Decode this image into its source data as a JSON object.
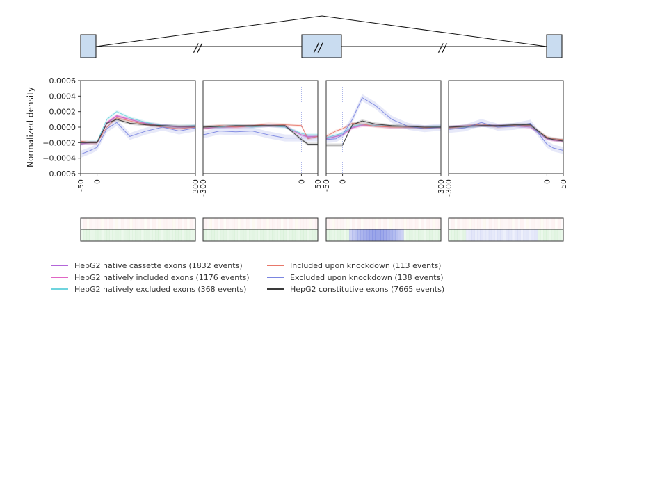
{
  "chart_data": [
    {
      "type": "line",
      "panel": "upstream-exon-end",
      "ylabel": "Normalized density",
      "ylim": [
        -0.0006,
        0.0006
      ],
      "yticks": [
        "0.0006",
        "0.0004",
        "0.0002",
        "0.0000",
        "−0.0002",
        "−0.0004",
        "−0.0006"
      ],
      "xlim": [
        -50,
        300
      ],
      "xticks": [
        "-50",
        "0",
        "300"
      ],
      "vline": 0,
      "series": [
        {
          "name": "HepG2 native cassette exons (1832 events)",
          "x": [
            -50,
            -20,
            0,
            30,
            60,
            100,
            150,
            200,
            250,
            300
          ],
          "y": [
            -0.00022,
            -0.0002,
            -0.0002,
            5e-05,
            0.00014,
            0.0001,
            5e-05,
            2e-05,
            0.0,
            0.0
          ]
        },
        {
          "name": "HepG2 natively included exons (1176 events)",
          "x": [
            -50,
            -20,
            0,
            30,
            60,
            100,
            150,
            200,
            250,
            300
          ],
          "y": [
            -0.00021,
            -0.0002,
            -0.0002,
            6e-05,
            0.00015,
            0.0001,
            4e-05,
            2e-05,
            0.0,
            1e-05
          ]
        },
        {
          "name": "HepG2 natively excluded exons (368 events)",
          "x": [
            -50,
            -20,
            0,
            30,
            60,
            100,
            150,
            200,
            250,
            300
          ],
          "y": [
            -0.0002,
            -0.00019,
            -0.00019,
            0.0001,
            0.0002,
            0.00012,
            6e-05,
            2e-05,
            1e-05,
            2e-05
          ]
        },
        {
          "name": "Included upon knockdown (113 events)",
          "x": [
            -50,
            -20,
            0,
            30,
            60,
            100,
            150,
            200,
            250,
            300
          ],
          "y": [
            -0.00018,
            -0.0002,
            -0.0002,
            0.0,
            0.00012,
            8e-05,
            3e-05,
            0.0,
            -2e-05,
            0.0
          ]
        },
        {
          "name": "Excluded upon knockdown (138 events)",
          "x": [
            -50,
            -20,
            0,
            30,
            60,
            100,
            150,
            200,
            250,
            300
          ],
          "y": [
            -0.00035,
            -0.0003,
            -0.00026,
            -2e-05,
            6e-05,
            -0.00012,
            -5e-05,
            0.0,
            -5e-05,
            -1e-05
          ]
        },
        {
          "name": "HepG2 constitutive exons (7665 events)",
          "x": [
            -50,
            -20,
            0,
            30,
            60,
            100,
            150,
            200,
            250,
            300
          ],
          "y": [
            -0.0002,
            -0.0002,
            -0.0002,
            5e-05,
            0.0001,
            5e-05,
            3e-05,
            2e-05,
            1e-05,
            1e-05
          ]
        }
      ]
    },
    {
      "type": "line",
      "panel": "cassette-exon-start",
      "ylim": [
        -0.0006,
        0.0006
      ],
      "xlim": [
        -300,
        50
      ],
      "xticks": [
        "-300",
        "0",
        "50"
      ],
      "vline": 0,
      "series": [
        {
          "name": "HepG2 native cassette exons (1832 events)",
          "x": [
            -300,
            -250,
            -200,
            -150,
            -100,
            -50,
            0,
            20,
            50
          ],
          "y": [
            0.0,
            0.0,
            0.0,
            1e-05,
            2e-05,
            1e-05,
            -0.0001,
            -0.00012,
            -0.00012
          ]
        },
        {
          "name": "HepG2 natively included exons (1176 events)",
          "x": [
            -300,
            -250,
            -200,
            -150,
            -100,
            -50,
            0,
            20,
            50
          ],
          "y": [
            -2e-05,
            0.0,
            1e-05,
            1e-05,
            2e-05,
            1e-05,
            -0.0001,
            -0.00013,
            -0.00012
          ]
        },
        {
          "name": "HepG2 natively excluded exons (368 events)",
          "x": [
            -300,
            -250,
            -200,
            -150,
            -100,
            -50,
            0,
            20,
            50
          ],
          "y": [
            1e-05,
            0.0,
            2e-05,
            0.0,
            2e-05,
            0.0,
            -8e-05,
            -0.0001,
            -0.0001
          ]
        },
        {
          "name": "Included upon knockdown (113 events)",
          "x": [
            -300,
            -250,
            -200,
            -150,
            -100,
            -50,
            0,
            20,
            50
          ],
          "y": [
            0.0,
            2e-05,
            0.0,
            2e-05,
            4e-05,
            3e-05,
            2e-05,
            -0.00015,
            -0.00012
          ]
        },
        {
          "name": "Excluded upon knockdown (138 events)",
          "x": [
            -300,
            -250,
            -200,
            -150,
            -100,
            -50,
            0,
            20,
            50
          ],
          "y": [
            -0.0001,
            -5e-05,
            -6e-05,
            -5e-05,
            -0.0001,
            -0.00014,
            -0.00014,
            -0.00014,
            -0.00014
          ]
        },
        {
          "name": "HepG2 constitutive exons (7665 events)",
          "x": [
            -300,
            -250,
            -200,
            -150,
            -100,
            -50,
            0,
            20,
            50
          ],
          "y": [
            0.0,
            1e-05,
            2e-05,
            2e-05,
            2e-05,
            2e-05,
            -0.00016,
            -0.00022,
            -0.00022
          ]
        }
      ]
    },
    {
      "type": "line",
      "panel": "cassette-exon-end",
      "ylim": [
        -0.0006,
        0.0006
      ],
      "xlim": [
        -50,
        300
      ],
      "xticks": [
        "-50",
        "0",
        "300"
      ],
      "vline": 0,
      "series": [
        {
          "name": "HepG2 native cassette exons (1832 events)",
          "x": [
            -50,
            -20,
            0,
            30,
            60,
            100,
            150,
            200,
            250,
            300
          ],
          "y": [
            -0.00015,
            -0.00012,
            -0.0001,
            0.0,
            3e-05,
            2e-05,
            0.0,
            0.0,
            0.0,
            0.0
          ]
        },
        {
          "name": "HepG2 natively included exons (1176 events)",
          "x": [
            -50,
            -20,
            0,
            30,
            60,
            100,
            150,
            200,
            250,
            300
          ],
          "y": [
            -0.00015,
            -0.00012,
            -0.0001,
            -1e-05,
            2e-05,
            2e-05,
            0.0,
            0.0,
            0.0,
            0.0
          ]
        },
        {
          "name": "HepG2 natively excluded exons (368 events)",
          "x": [
            -50,
            -20,
            0,
            30,
            60,
            100,
            150,
            200,
            250,
            300
          ],
          "y": [
            -0.00014,
            -0.0001,
            -8e-05,
            1e-05,
            4e-05,
            2e-05,
            1e-05,
            0.0,
            0.0,
            1e-05
          ]
        },
        {
          "name": "Included upon knockdown (113 events)",
          "x": [
            -50,
            -20,
            0,
            30,
            60,
            100,
            150,
            200,
            250,
            300
          ],
          "y": [
            -0.00012,
            -5e-05,
            -2e-05,
            5e-05,
            4e-05,
            1e-05,
            0.0,
            0.0,
            -1e-05,
            0.0
          ]
        },
        {
          "name": "Excluded upon knockdown (138 events)",
          "x": [
            -50,
            -20,
            0,
            30,
            60,
            100,
            150,
            200,
            250,
            300
          ],
          "y": [
            -0.00016,
            -0.00015,
            -0.0001,
            0.0001,
            0.00038,
            0.00028,
            0.0001,
            1e-05,
            -2e-05,
            0.0
          ]
        },
        {
          "name": "HepG2 constitutive exons (7665 events)",
          "x": [
            -50,
            -20,
            0,
            30,
            60,
            100,
            150,
            200,
            250,
            300
          ],
          "y": [
            -0.00023,
            -0.00023,
            -0.00023,
            3e-05,
            8e-05,
            4e-05,
            2e-05,
            1e-05,
            0.0,
            0.0
          ]
        }
      ]
    },
    {
      "type": "line",
      "panel": "downstream-exon-start",
      "ylim": [
        -0.0006,
        0.0006
      ],
      "xlim": [
        -300,
        50
      ],
      "xticks": [
        "-300",
        "0",
        "50"
      ],
      "vline": 0,
      "series": [
        {
          "name": "HepG2 native cassette exons (1832 events)",
          "x": [
            -300,
            -250,
            -200,
            -150,
            -100,
            -50,
            0,
            20,
            50
          ],
          "y": [
            0.0,
            1e-05,
            2e-05,
            2e-05,
            2e-05,
            0.0,
            -0.00015,
            -0.00016,
            -0.00018
          ]
        },
        {
          "name": "HepG2 natively included exons (1176 events)",
          "x": [
            -300,
            -250,
            -200,
            -150,
            -100,
            -50,
            0,
            20,
            50
          ],
          "y": [
            0.0,
            1e-05,
            2e-05,
            2e-05,
            2e-05,
            0.0,
            -0.00015,
            -0.00017,
            -0.00018
          ]
        },
        {
          "name": "HepG2 natively excluded exons (368 events)",
          "x": [
            -300,
            -250,
            -200,
            -150,
            -100,
            -50,
            0,
            20,
            50
          ],
          "y": [
            0.0,
            0.0,
            2e-05,
            1e-05,
            2e-05,
            1e-05,
            -0.00014,
            -0.00015,
            -0.00016
          ]
        },
        {
          "name": "Included upon knockdown (113 events)",
          "x": [
            -300,
            -250,
            -200,
            -150,
            -100,
            -50,
            0,
            20,
            50
          ],
          "y": [
            -1e-05,
            1e-05,
            4e-05,
            0.0,
            2e-05,
            2e-05,
            -0.00013,
            -0.00015,
            -0.00016
          ]
        },
        {
          "name": "Excluded upon knockdown (138 events)",
          "x": [
            -300,
            -250,
            -200,
            -150,
            -100,
            -50,
            0,
            20,
            50
          ],
          "y": [
            -3e-05,
            -1e-05,
            6e-05,
            0.0,
            1e-05,
            5e-05,
            -0.00022,
            -0.00027,
            -0.0003
          ]
        },
        {
          "name": "HepG2 constitutive exons (7665 events)",
          "x": [
            -300,
            -250,
            -200,
            -150,
            -100,
            -50,
            0,
            20,
            50
          ],
          "y": [
            0.0,
            1e-05,
            2e-05,
            2e-05,
            3e-05,
            3e-05,
            -0.00014,
            -0.00016,
            -0.00018
          ]
        }
      ]
    }
  ],
  "colors": {
    "HepG2 native cassette exons (1832 events)": "#b366d9",
    "HepG2 natively included exons (1176 events)": "#e066c4",
    "HepG2 natively excluded exons (368 events)": "#6fd4de",
    "Included upon knockdown (113 events)": "#e8786a",
    "Excluded upon knockdown (138 events)": "#7a85e0",
    "HepG2 constitutive exons (7665 events)": "#3a3a3a"
  },
  "legend": {
    "left": [
      {
        "label": "HepG2 native cassette exons (1832 events)",
        "color": "#b366d9"
      },
      {
        "label": "HepG2 natively included exons (1176 events)",
        "color": "#e066c4"
      },
      {
        "label": "HepG2 natively excluded exons (368 events)",
        "color": "#6fd4de"
      }
    ],
    "right": [
      {
        "label": "Included upon knockdown (113 events)",
        "color": "#e8786a"
      },
      {
        "label": "Excluded upon knockdown (138 events)",
        "color": "#7a85e0"
      },
      {
        "label": "HepG2 constitutive exons (7665 events)",
        "color": "#3a3a3a"
      }
    ]
  },
  "heatmap_strips": {
    "top_row": "included-upon-knockdown significance (red tint)",
    "bottom_row": "excluded-upon-knockdown significance (blue/green tint)"
  }
}
